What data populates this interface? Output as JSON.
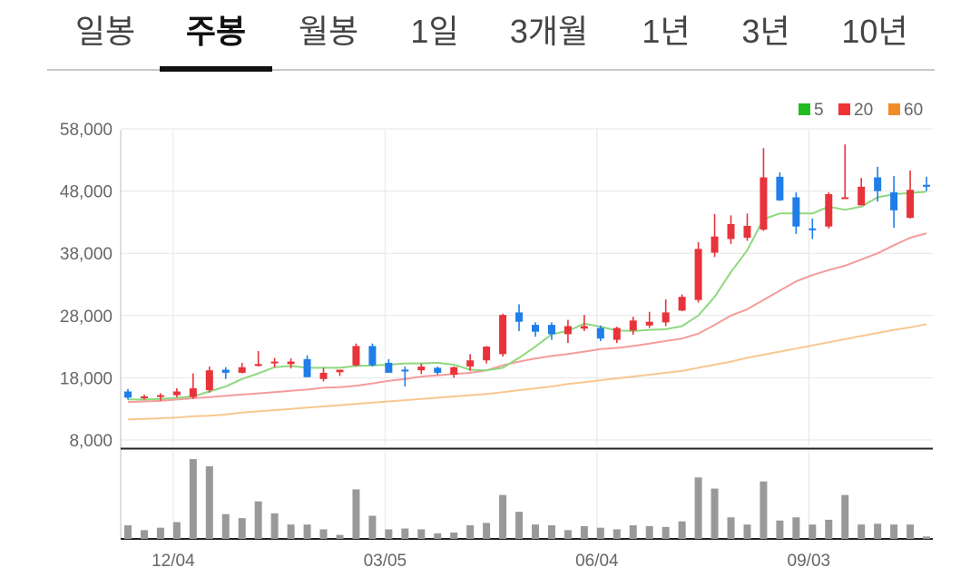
{
  "tabs": [
    {
      "label": "일봉",
      "active": false
    },
    {
      "label": "주봉",
      "active": true
    },
    {
      "label": "월봉",
      "active": false
    },
    {
      "label": "1일",
      "active": false
    },
    {
      "label": "3개월",
      "active": false
    },
    {
      "label": "1년",
      "active": false
    },
    {
      "label": "3년",
      "active": false
    },
    {
      "label": "10년",
      "active": false
    }
  ],
  "chart_data": {
    "type": "candlestick",
    "interval": "weekly",
    "y_ticks": [
      "58,000",
      "48,000",
      "38,000",
      "28,000",
      "18,000",
      "8,000"
    ],
    "y_tick_values": [
      58000,
      48000,
      38000,
      28000,
      18000,
      8000
    ],
    "ylim": [
      8000,
      58000
    ],
    "x_labels": [
      "12/04",
      "03/05",
      "06/04",
      "09/03"
    ],
    "x_label_index": [
      3,
      16,
      29,
      42
    ],
    "grid": true,
    "legend_position": "top-right",
    "legend": [
      {
        "label": "5",
        "color": "#22bb22"
      },
      {
        "label": "20",
        "color": "#ee3333"
      },
      {
        "label": "60",
        "color": "#f28c28"
      }
    ],
    "colors": {
      "up": "#e8333a",
      "down": "#1f7ee8",
      "ma5": "#8fd87f",
      "ma20": "#f59c9c",
      "ma60": "#f7c890",
      "volume": "#999999"
    },
    "candles": [
      [
        15800,
        16200,
        14500,
        14800
      ],
      [
        14800,
        15300,
        14500,
        15000
      ],
      [
        15000,
        15500,
        14300,
        15200
      ],
      [
        15200,
        16300,
        14900,
        15800
      ],
      [
        14900,
        18700,
        14600,
        16300
      ],
      [
        16000,
        19800,
        15600,
        19200
      ],
      [
        19300,
        19700,
        17800,
        18800
      ],
      [
        18800,
        20400,
        18700,
        19700
      ],
      [
        20000,
        22300,
        19800,
        20200
      ],
      [
        20600,
        21200,
        19700,
        20600
      ],
      [
        20200,
        21100,
        19500,
        20600
      ],
      [
        21000,
        21600,
        18100,
        18100
      ],
      [
        17800,
        19600,
        17400,
        18800
      ],
      [
        18900,
        19300,
        18300,
        19300
      ],
      [
        20000,
        23500,
        19800,
        23100
      ],
      [
        23100,
        23500,
        19800,
        20000
      ],
      [
        20400,
        21000,
        19000,
        18800
      ],
      [
        19300,
        19800,
        16600,
        19200
      ],
      [
        19200,
        20300,
        18600,
        19800
      ],
      [
        19600,
        19800,
        18500,
        18800
      ],
      [
        18500,
        19800,
        18000,
        19700
      ],
      [
        19800,
        21800,
        19100,
        20800
      ],
      [
        20800,
        23100,
        20300,
        23000
      ],
      [
        21800,
        28300,
        21400,
        28100
      ],
      [
        28500,
        29800,
        25500,
        27000
      ],
      [
        26500,
        26900,
        24600,
        25400
      ],
      [
        26500,
        26900,
        24100,
        25000
      ],
      [
        25000,
        27300,
        23600,
        26300
      ],
      [
        25900,
        28100,
        25500,
        26300
      ],
      [
        26000,
        26400,
        23900,
        24300
      ],
      [
        24100,
        26200,
        23600,
        26000
      ],
      [
        25600,
        27800,
        24900,
        27200
      ],
      [
        26400,
        28600,
        26000,
        27000
      ],
      [
        26900,
        30600,
        26300,
        28500
      ],
      [
        28800,
        31400,
        28700,
        31000
      ],
      [
        30500,
        39800,
        30100,
        38700
      ],
      [
        38100,
        44300,
        37400,
        40700
      ],
      [
        40300,
        44100,
        39500,
        42700
      ],
      [
        40500,
        44400,
        40000,
        42400
      ],
      [
        41800,
        54900,
        41600,
        50200
      ],
      [
        50300,
        51000,
        46400,
        46500
      ],
      [
        47000,
        47800,
        41100,
        42300
      ],
      [
        42000,
        43600,
        40300,
        41900
      ],
      [
        42300,
        47800,
        42000,
        47500
      ],
      [
        47000,
        55500,
        47000,
        47000
      ],
      [
        45700,
        50100,
        45700,
        48700
      ],
      [
        50200,
        51900,
        46300,
        48000
      ],
      [
        47800,
        50400,
        42100,
        44900
      ],
      [
        43700,
        51300,
        43600,
        48200
      ],
      [
        49000,
        50300,
        48000,
        48700
      ]
    ],
    "volume_relative": [
      0.17,
      0.11,
      0.14,
      0.21,
      1.0,
      0.91,
      0.31,
      0.26,
      0.47,
      0.32,
      0.18,
      0.18,
      0.12,
      0.05,
      0.62,
      0.29,
      0.12,
      0.13,
      0.12,
      0.07,
      0.08,
      0.17,
      0.2,
      0.55,
      0.34,
      0.18,
      0.17,
      0.11,
      0.16,
      0.14,
      0.12,
      0.17,
      0.16,
      0.15,
      0.22,
      0.77,
      0.63,
      0.27,
      0.18,
      0.72,
      0.23,
      0.27,
      0.18,
      0.24,
      0.55,
      0.18,
      0.19,
      0.18,
      0.18,
      0.03
    ],
    "ma5": [
      14500,
      14500,
      14600,
      14800,
      15000,
      15800,
      16600,
      17800,
      18700,
      19700,
      19900,
      19600,
      19600,
      19600,
      19900,
      20000,
      20100,
      20300,
      20300,
      20400,
      20100,
      19300,
      19200,
      19600,
      21200,
      23000,
      25000,
      25500,
      26700,
      26200,
      25600,
      25500,
      25700,
      25800,
      26300,
      28000,
      31000,
      35000,
      38500,
      43500,
      44400,
      44400,
      44400,
      45500,
      45000,
      45500,
      47000,
      47500,
      47700,
      47900
    ],
    "ma20": [
      14100,
      14200,
      14300,
      14500,
      14700,
      14900,
      15100,
      15300,
      15500,
      15700,
      15900,
      16100,
      16400,
      16500,
      16700,
      17100,
      17500,
      17800,
      18200,
      18400,
      18600,
      18800,
      19200,
      20000,
      20600,
      21100,
      21500,
      21800,
      22200,
      22600,
      22800,
      23100,
      23500,
      23900,
      24300,
      25100,
      26500,
      28000,
      29000,
      30500,
      32000,
      33500,
      34500,
      35300,
      36000,
      37000,
      38000,
      39300,
      40500,
      41200
    ],
    "ma60": [
      11300,
      11400,
      11500,
      11600,
      11800,
      11900,
      12100,
      12400,
      12600,
      12800,
      13000,
      13200,
      13400,
      13600,
      13800,
      14000,
      14200,
      14400,
      14600,
      14800,
      15000,
      15200,
      15400,
      15700,
      16000,
      16300,
      16600,
      17000,
      17300,
      17600,
      17900,
      18200,
      18500,
      18800,
      19100,
      19600,
      20100,
      20600,
      21200,
      21700,
      22200,
      22700,
      23200,
      23700,
      24200,
      24700,
      25200,
      25700,
      26100,
      26600
    ]
  }
}
